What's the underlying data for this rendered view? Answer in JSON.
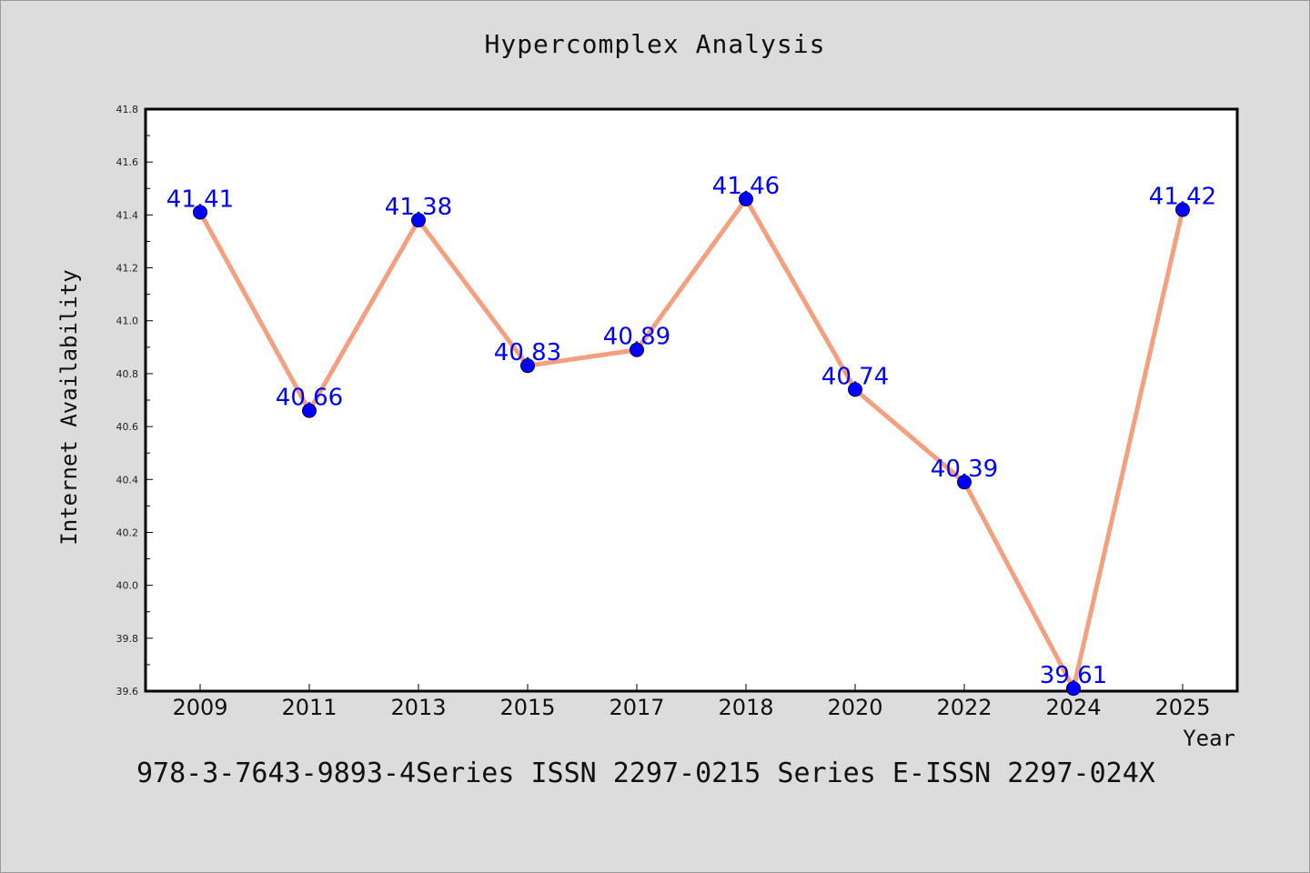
{
  "chart_data": {
    "type": "line",
    "title": "Hypercomplex Analysis",
    "xlabel": "Year",
    "ylabel": "Internet Availability",
    "categories": [
      "2009",
      "2011",
      "2013",
      "2015",
      "2017",
      "2018",
      "2020",
      "2022",
      "2024",
      "2025"
    ],
    "series": [
      {
        "values": [
          41.41,
          40.66,
          41.38,
          40.83,
          40.89,
          41.46,
          40.74,
          40.39,
          39.61,
          41.42
        ],
        "data_labels": [
          "41.41",
          "40.66",
          "41.38",
          "40.83",
          "40.89",
          "41.46",
          "40.74",
          "40.39",
          "39.61",
          "41.42"
        ]
      }
    ],
    "ylim": [
      39.6,
      41.8
    ],
    "yticks": [
      "39.6",
      "39.8",
      "40.0",
      "40.2",
      "40.4",
      "40.6",
      "40.8",
      "41.0",
      "41.2",
      "41.4",
      "41.6",
      "41.8"
    ],
    "grid": false,
    "colors": {
      "line": "#f4a07e",
      "marker": "#0000ff",
      "data_label": "#0000ff",
      "background": "#dcdcdc",
      "plot_background": "#ffffff"
    }
  },
  "footer": "978-3-7643-9893-4Series ISSN 2297-0215 Series E-ISSN 2297-024X"
}
